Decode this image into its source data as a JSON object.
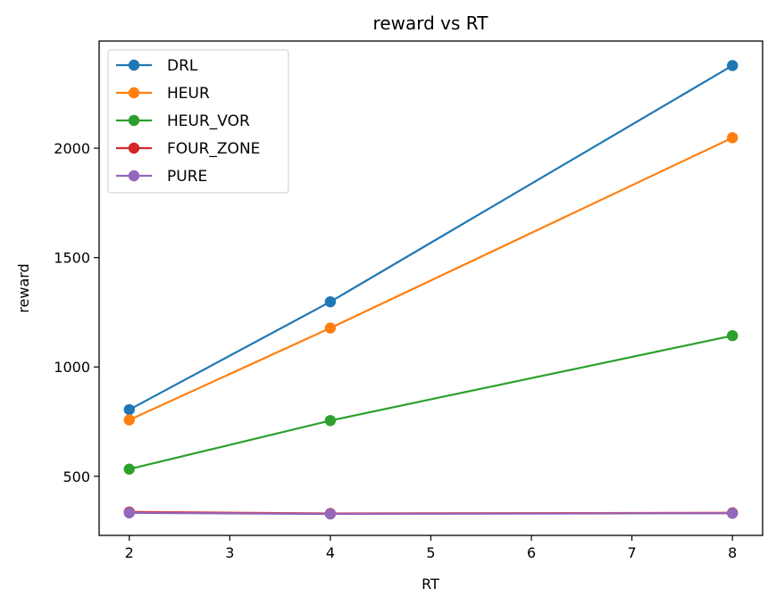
{
  "chart_data": {
    "type": "line",
    "title": "reward vs RT",
    "xlabel": "RT",
    "ylabel": "reward",
    "xlim": [
      1.7,
      8.3
    ],
    "ylim": [
      230,
      2490
    ],
    "xticks": [
      2,
      3,
      4,
      5,
      6,
      7,
      8
    ],
    "yticks": [
      500,
      1000,
      1500,
      2000
    ],
    "grid": false,
    "legend_position": "top-left",
    "x": [
      2,
      4,
      8
    ],
    "series": [
      {
        "name": "DRL",
        "color": "#1f77b4",
        "values": [
          805,
          1298,
          2378
        ]
      },
      {
        "name": "HEUR",
        "color": "#ff7f0e",
        "values": [
          758,
          1178,
          2048
        ]
      },
      {
        "name": "HEUR_VOR",
        "color": "#2ca02c",
        "values": [
          533,
          755,
          1143
        ]
      },
      {
        "name": "FOUR_ZONE",
        "color": "#d62728",
        "values": [
          337,
          330,
          333
        ]
      },
      {
        "name": "PURE",
        "color": "#9467bd",
        "values": [
          333,
          328,
          331
        ]
      }
    ]
  }
}
